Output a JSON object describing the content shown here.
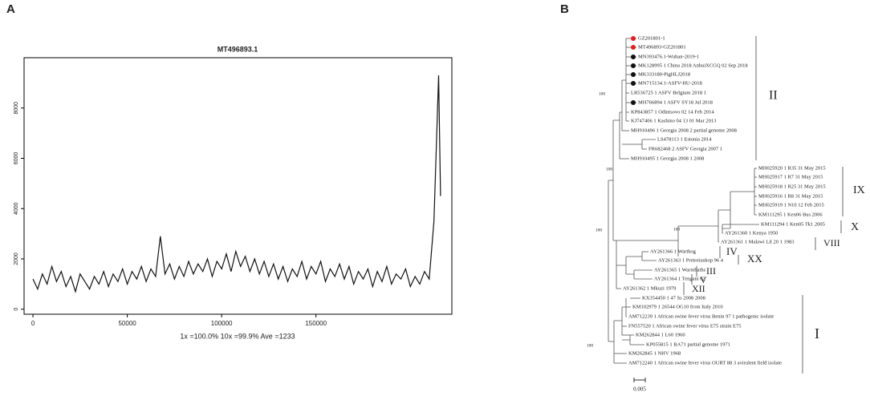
{
  "panels": [
    "A",
    "B"
  ],
  "chart_data": {
    "type": "line",
    "title": "MT496893.1",
    "x_label": "1x =100.0% 10x =99.9% Ave =1233",
    "color": "#111111",
    "x": [
      0,
      2500,
      5000,
      7500,
      10000,
      12500,
      15000,
      17500,
      20000,
      22500,
      25000,
      27500,
      30000,
      32500,
      35000,
      37500,
      40000,
      42500,
      45000,
      47500,
      50000,
      52500,
      55000,
      57500,
      60000,
      62500,
      65000,
      67500,
      70000,
      72500,
      75000,
      77500,
      80000,
      82500,
      85000,
      87500,
      90000,
      92500,
      95000,
      97500,
      100000,
      102500,
      105000,
      107500,
      110000,
      112500,
      115000,
      117500,
      120000,
      122500,
      125000,
      127500,
      130000,
      132500,
      135000,
      137500,
      140000,
      142500,
      145000,
      147500,
      150000,
      152500,
      155000,
      157500,
      160000,
      162500,
      165000,
      167500,
      170000,
      172500,
      175000,
      177500,
      180000,
      182500,
      185000,
      187500,
      190000,
      192500,
      195000,
      197500,
      200000,
      202500,
      205000,
      207500,
      210000,
      212500,
      214000,
      215000,
      216000
    ],
    "values": [
      1200,
      800,
      1400,
      1000,
      1700,
      1100,
      1500,
      900,
      1300,
      700,
      1400,
      1100,
      800,
      1300,
      1000,
      1500,
      900,
      1400,
      1100,
      1600,
      1000,
      1500,
      1200,
      1700,
      1100,
      1600,
      1300,
      2900,
      1400,
      1800,
      1200,
      1700,
      1300,
      1900,
      1400,
      1800,
      1500,
      2000,
      1300,
      1900,
      1600,
      2200,
      1500,
      2300,
      1700,
      2100,
      1500,
      2000,
      1400,
      1900,
      1300,
      1800,
      1200,
      1700,
      1100,
      1600,
      1300,
      1900,
      1200,
      1700,
      1400,
      1900,
      1100,
      1600,
      1300,
      1800,
      1200,
      1700,
      1000,
      1500,
      1200,
      1600,
      900,
      1500,
      1100,
      1700,
      1000,
      1400,
      1200,
      1600,
      900,
      1300,
      1000,
      1500,
      1200,
      3500,
      7000,
      9300,
      4500
    ],
    "xlim": [
      -4700,
      222000
    ],
    "xticks": [
      0,
      50000,
      100000,
      150000
    ],
    "ylim": [
      -200,
      10000
    ],
    "yticks": [
      0,
      2000,
      4000,
      6000,
      8000
    ]
  },
  "tree": {
    "leaves": [
      {
        "label": "GZ201801-1",
        "color": "#e02020"
      },
      {
        "label": "MT496893-GZ201801",
        "color": "#e02020"
      },
      {
        "label": "MN393476.1-Wuhan-2019-1",
        "color": "#111111"
      },
      {
        "label": "MK128995 1 China 2018 AnhuiXCGQ 02 Sep 2018",
        "color": "#111111"
      },
      {
        "label": "MK333180-PigHLJ2018",
        "color": "#111111"
      },
      {
        "label": "MN715134.1-ASFV-HU-2018",
        "color": "#111111"
      },
      {
        "label": "LR536725 1 ASFV Belgium 2018 1"
      },
      {
        "label": "MH766894 1 ASFV SY18 Jul 2018",
        "color": "#111111"
      },
      {
        "label": "KP843857 1 Odintsovo 02 14 Feb 2014"
      },
      {
        "label": "KJ747406 1 Kashino 04 13 01 Mar 2013"
      },
      {
        "label": "MH910496 1 Georgia 2008 2 partial genome 2008"
      },
      {
        "label": "LS478113 1 Estonia 2014"
      },
      {
        "label": "FR682468 2 ASFV Georgia 2007 1"
      },
      {
        "label": "MH910495 1 Georgia 2008 1 2008"
      },
      {
        "label": "MH025920 1 R35 31 May 2015"
      },
      {
        "label": "MH025917 1 R7 31 May 2015"
      },
      {
        "label": "MH025918 1 R25 31 May 2015"
      },
      {
        "label": "MH025916 1 R8 31 May 2015"
      },
      {
        "label": "MH025919 1 N10 12 Feb 2015"
      },
      {
        "label": "KM111295 1 Ken06 Bus 2006"
      },
      {
        "label": "KM111294 1 Ken05 Tk1 2005"
      },
      {
        "label": "AY261360 1 Kenya 1950"
      },
      {
        "label": "AY261361 1 Malawi Lil 20 1 1983"
      },
      {
        "label": "AY261366 1 Warthog"
      },
      {
        "label": "AY261363 1 Pretoriuskop 96 4"
      },
      {
        "label": "AY261365 1 Warmbaths"
      },
      {
        "label": "AY261364 1 Tengani 62"
      },
      {
        "label": "AY261362 1 Mkuzi 1979"
      },
      {
        "label": "KX354450 1 47 Ss 2008 2008"
      },
      {
        "label": "KM102979 1 26544 OG10 from Italy 2010"
      },
      {
        "label": "AM712239 1 African swine fever virus Benin 97 1 pathogenic isolate"
      },
      {
        "label": "FN557520 1 African swine fever virus E75 strain E75"
      },
      {
        "label": "KM262844 1 L60 1960"
      },
      {
        "label": "KP055815 1 BA71 partial genome 1971"
      },
      {
        "label": "KM262845 1 NHV 1968"
      },
      {
        "label": "AM712240 1 African swine fever virus OURT 88 3 avirulent field isolate"
      }
    ],
    "bootstrap": [
      100,
      100,
      100,
      100,
      100
    ],
    "clades": [
      "II",
      "IX",
      "X",
      "VIII",
      "IV",
      "XX",
      "III",
      "V",
      "XII",
      "I"
    ],
    "scale": 0.005
  }
}
